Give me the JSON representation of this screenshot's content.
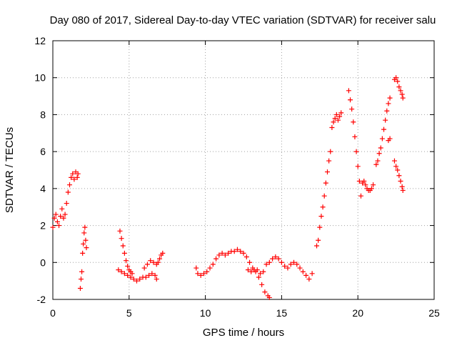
{
  "chart_data": {
    "type": "scatter",
    "title": "Day 080 of 2017, Sidereal Day-to-day VTEC variation (SDTVAR) for receiver salu",
    "xlabel": "GPS time / hours",
    "ylabel": "SDTVAR / TECUs",
    "xlim": [
      0,
      25
    ],
    "ylim": [
      -2,
      12
    ],
    "xticks": [
      0,
      5,
      10,
      15,
      20,
      25
    ],
    "yticks": [
      -2,
      0,
      2,
      4,
      6,
      8,
      10,
      12
    ],
    "grid": true,
    "marker": "+",
    "color": "#ff0000",
    "segments": [
      [
        [
          0.0,
          1.9
        ],
        [
          0.1,
          2.4
        ],
        [
          0.2,
          2.6
        ],
        [
          0.3,
          2.2
        ],
        [
          0.4,
          2.0
        ],
        [
          0.5,
          2.5
        ],
        [
          0.6,
          2.9
        ],
        [
          0.7,
          2.4
        ],
        [
          0.8,
          2.6
        ],
        [
          0.9,
          3.2
        ],
        [
          1.0,
          3.8
        ],
        [
          1.1,
          4.2
        ],
        [
          1.2,
          4.6
        ],
        [
          1.3,
          4.8
        ],
        [
          1.4,
          4.5
        ],
        [
          1.5,
          4.9
        ],
        [
          1.6,
          4.6
        ],
        [
          1.65,
          4.8
        ]
      ],
      [
        [
          1.8,
          -1.4
        ],
        [
          1.85,
          -0.9
        ],
        [
          1.9,
          -0.5
        ],
        [
          1.95,
          0.5
        ],
        [
          2.0,
          1.0
        ],
        [
          2.05,
          1.6
        ],
        [
          2.1,
          1.9
        ],
        [
          2.15,
          1.2
        ],
        [
          2.2,
          0.8
        ]
      ],
      [
        [
          4.3,
          -0.4
        ],
        [
          4.5,
          -0.5
        ],
        [
          4.7,
          -0.6
        ],
        [
          4.9,
          -0.7
        ],
        [
          5.1,
          -0.8
        ],
        [
          5.3,
          -0.9
        ],
        [
          5.5,
          -1.0
        ],
        [
          5.7,
          -0.9
        ],
        [
          5.9,
          -0.8
        ],
        [
          6.1,
          -0.8
        ],
        [
          6.3,
          -0.7
        ],
        [
          6.5,
          -0.6
        ],
        [
          6.7,
          -0.7
        ],
        [
          6.8,
          -0.9
        ]
      ],
      [
        [
          4.4,
          1.7
        ],
        [
          4.5,
          1.3
        ],
        [
          4.6,
          0.9
        ],
        [
          4.7,
          0.5
        ],
        [
          4.8,
          0.1
        ],
        [
          4.9,
          -0.2
        ],
        [
          5.0,
          -0.4
        ],
        [
          5.1,
          -0.5
        ],
        [
          5.2,
          -0.6
        ]
      ],
      [
        [
          6.0,
          -0.3
        ],
        [
          6.2,
          -0.1
        ],
        [
          6.4,
          0.1
        ],
        [
          6.6,
          0.0
        ],
        [
          6.8,
          -0.1
        ],
        [
          6.9,
          0.0
        ],
        [
          7.0,
          0.2
        ],
        [
          7.1,
          0.4
        ],
        [
          7.2,
          0.5
        ]
      ],
      [
        [
          9.4,
          -0.3
        ],
        [
          9.5,
          -0.6
        ],
        [
          9.7,
          -0.7
        ],
        [
          9.9,
          -0.6
        ],
        [
          10.1,
          -0.5
        ],
        [
          10.3,
          -0.3
        ],
        [
          10.5,
          -0.1
        ],
        [
          10.7,
          0.2
        ],
        [
          10.9,
          0.4
        ],
        [
          11.1,
          0.5
        ],
        [
          11.3,
          0.4
        ],
        [
          11.5,
          0.5
        ],
        [
          11.7,
          0.6
        ],
        [
          11.9,
          0.6
        ],
        [
          12.1,
          0.7
        ],
        [
          12.3,
          0.6
        ],
        [
          12.5,
          0.5
        ],
        [
          12.7,
          0.3
        ],
        [
          12.9,
          0.0
        ],
        [
          13.1,
          -0.3
        ],
        [
          13.3,
          -0.5
        ],
        [
          13.5,
          -0.8
        ],
        [
          13.7,
          -1.2
        ],
        [
          13.9,
          -1.6
        ],
        [
          14.1,
          -1.8
        ],
        [
          14.2,
          -1.9
        ]
      ],
      [
        [
          12.8,
          -0.4
        ],
        [
          13.0,
          -0.5
        ],
        [
          13.2,
          -0.4
        ],
        [
          13.4,
          -0.4
        ],
        [
          13.6,
          -0.6
        ],
        [
          13.8,
          -0.5
        ],
        [
          14.0,
          -0.1
        ],
        [
          14.2,
          0.0
        ],
        [
          14.4,
          0.2
        ],
        [
          14.6,
          0.3
        ],
        [
          14.8,
          0.2
        ],
        [
          15.0,
          0.0
        ],
        [
          15.2,
          -0.2
        ],
        [
          15.4,
          -0.3
        ],
        [
          15.6,
          -0.1
        ],
        [
          15.8,
          0.0
        ],
        [
          16.0,
          -0.1
        ],
        [
          16.2,
          -0.3
        ],
        [
          16.4,
          -0.5
        ],
        [
          16.6,
          -0.7
        ],
        [
          16.8,
          -0.9
        ],
        [
          17.0,
          -0.6
        ]
      ],
      [
        [
          17.3,
          0.9
        ],
        [
          17.4,
          1.2
        ],
        [
          17.5,
          1.9
        ],
        [
          17.6,
          2.5
        ],
        [
          17.7,
          3.0
        ],
        [
          17.8,
          3.6
        ],
        [
          17.9,
          4.3
        ],
        [
          18.0,
          4.9
        ],
        [
          18.1,
          5.5
        ],
        [
          18.2,
          6.0
        ]
      ],
      [
        [
          18.3,
          7.3
        ],
        [
          18.4,
          7.6
        ],
        [
          18.5,
          7.8
        ],
        [
          18.6,
          8.0
        ],
        [
          18.7,
          7.7
        ],
        [
          18.8,
          7.9
        ],
        [
          18.9,
          8.1
        ]
      ],
      [
        [
          19.4,
          9.3
        ],
        [
          19.5,
          8.8
        ],
        [
          19.6,
          8.3
        ],
        [
          19.7,
          7.6
        ],
        [
          19.8,
          6.8
        ],
        [
          19.9,
          6.0
        ],
        [
          20.0,
          5.2
        ],
        [
          20.1,
          4.4
        ],
        [
          20.2,
          3.6
        ]
      ],
      [
        [
          20.3,
          4.3
        ],
        [
          20.4,
          4.4
        ],
        [
          20.5,
          4.2
        ],
        [
          20.6,
          4.0
        ],
        [
          20.7,
          3.9
        ],
        [
          20.8,
          3.9
        ],
        [
          20.9,
          4.0
        ],
        [
          21.0,
          4.2
        ]
      ],
      [
        [
          21.2,
          5.3
        ],
        [
          21.3,
          5.5
        ],
        [
          21.4,
          5.9
        ],
        [
          21.5,
          6.2
        ],
        [
          21.6,
          6.7
        ],
        [
          21.7,
          7.2
        ],
        [
          21.8,
          7.7
        ],
        [
          21.9,
          8.2
        ],
        [
          22.0,
          8.6
        ],
        [
          22.1,
          8.9
        ]
      ],
      [
        [
          22.0,
          6.6
        ],
        [
          22.1,
          6.7
        ]
      ],
      [
        [
          22.4,
          9.9
        ],
        [
          22.5,
          10.0
        ],
        [
          22.6,
          9.8
        ],
        [
          22.7,
          9.5
        ],
        [
          22.8,
          9.3
        ],
        [
          22.9,
          9.1
        ],
        [
          22.95,
          8.9
        ]
      ],
      [
        [
          22.4,
          5.5
        ],
        [
          22.5,
          5.2
        ],
        [
          22.6,
          5.0
        ],
        [
          22.7,
          4.7
        ],
        [
          22.8,
          4.4
        ],
        [
          22.9,
          4.1
        ],
        [
          22.95,
          3.9
        ]
      ]
    ]
  }
}
